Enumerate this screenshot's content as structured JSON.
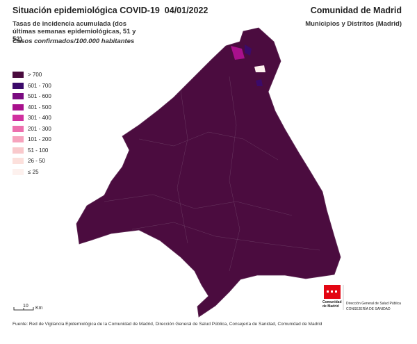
{
  "header": {
    "title": "Situación epidemiológica COVID-19  04/01/2022",
    "region": "Comunidad de Madrid",
    "scope": "Municipios y Distritos (Madrid)",
    "subtitle": "Tasas de incidencia acumulada (dos últimas semanas epidemiológicas, 51 y 52)",
    "units": "Casos confirmados/100.000 habitantes"
  },
  "legend": [
    {
      "label": "> 700",
      "color": "#4a0b3e"
    },
    {
      "label": "601 - 700",
      "color": "#3b0a6a"
    },
    {
      "label": "501 - 600",
      "color": "#7a0b80"
    },
    {
      "label": "401 - 500",
      "color": "#a8108c"
    },
    {
      "label": "301 - 400",
      "color": "#d0309f"
    },
    {
      "label": "201 - 300",
      "color": "#ec6fae"
    },
    {
      "label": "101 - 200",
      "color": "#f6a3bd"
    },
    {
      "label": "51 - 100",
      "color": "#f9c9cc"
    },
    {
      "label": "26 - 50",
      "color": "#fce0dc"
    },
    {
      "label": "≤ 25",
      "color": "#fdf1ee"
    }
  ],
  "scale": {
    "distance": "10",
    "unit": "Km"
  },
  "logo": {
    "name": "Comunidad de Madrid",
    "department": "Dirección General de Salud Pública",
    "ministry": "CONSEJERÍA DE SANIDAD"
  },
  "footer": "Fuente: Red de Vigilancia Epidemiológica de la Comunidad de Madrid, Dirección General de Salud Pública, Consejería de Sanidad, Comunidad de Madrid"
}
